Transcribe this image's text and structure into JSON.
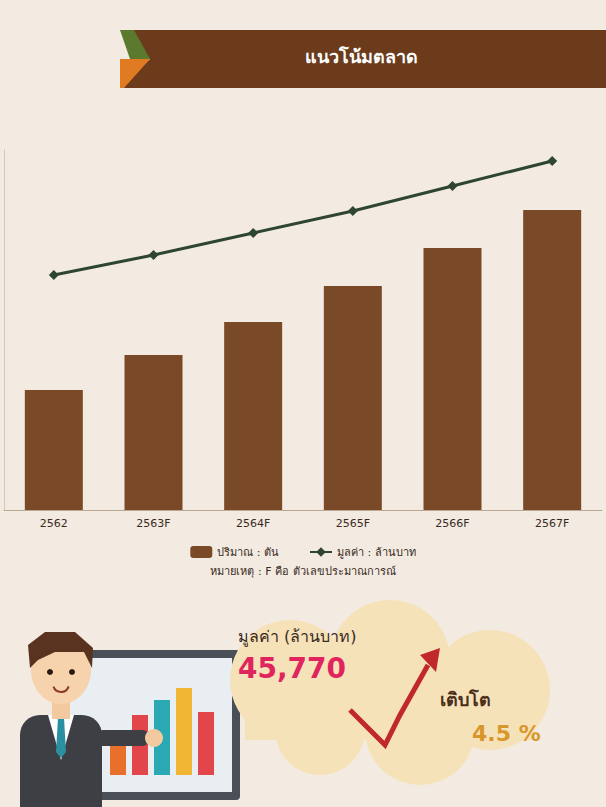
{
  "chart_data": {
    "type": "bar",
    "title": "แนวโน้มตลาด",
    "categories": [
      "2562",
      "2563F",
      "2564F",
      "2565F",
      "2566F",
      "2567F"
    ],
    "series": [
      {
        "name": "ปริมาณ : ตัน",
        "type": "bar",
        "color": "#7a4a28",
        "values": [
          120,
          155,
          188,
          224,
          262,
          300
        ]
      },
      {
        "name": "มูลค่า : ล้านบาท",
        "type": "line",
        "color": "#2e4630",
        "marker": "diamond",
        "values": [
          235,
          255,
          277,
          299,
          324,
          349
        ]
      }
    ],
    "ylim": [
      0,
      360
    ],
    "tick_labels": "x",
    "grid": false,
    "legend": "bottom",
    "annotations": [
      "หมายเหตุ : F คือ ตัวเลขประมาณการณ์",
      "มูลค่า (ล้านบาท)",
      "45,770",
      "เติบโต",
      "4.5 %"
    ]
  }
}
